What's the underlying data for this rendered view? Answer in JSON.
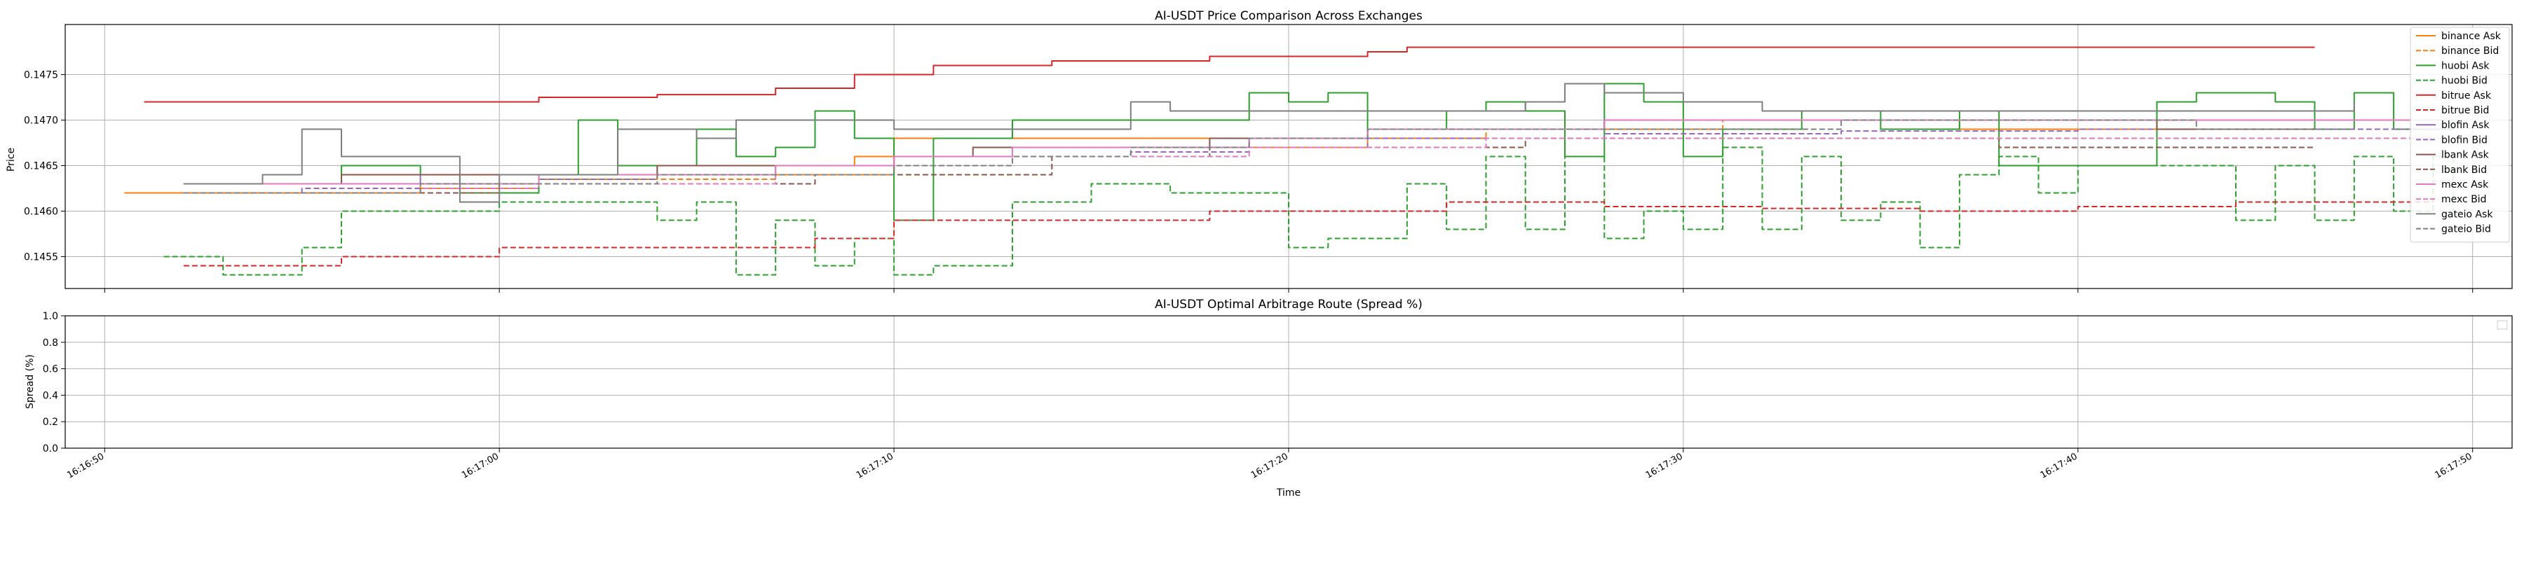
{
  "chart_data": [
    {
      "type": "line",
      "title": "AI-USDT Price Comparison Across Exchanges",
      "xlabel": "",
      "ylabel": "Price",
      "xlim": [
        "16:16:49",
        "16:17:51"
      ],
      "ylim": [
        0.14515,
        0.14805
      ],
      "yticks": [
        "0.1455",
        "0.1460",
        "0.1465",
        "0.1470",
        "0.1475"
      ],
      "ytick_values": [
        0.1455,
        0.146,
        0.1465,
        0.147,
        0.1475
      ],
      "grid": true,
      "legend_position": "right",
      "series": [
        {
          "name": "binance Ask",
          "color": "#ff7f0e",
          "style": "solid",
          "x": [
            "16:16:50.5",
            "16:16:52",
            "16:16:55",
            "16:16:58",
            "16:17:01",
            "16:17:04",
            "16:17:07",
            "16:17:09",
            "16:17:10",
            "16:17:13",
            "16:17:16",
            "16:17:19",
            "16:17:22",
            "16:17:25",
            "16:17:28",
            "16:17:31",
            "16:17:34",
            "16:17:37",
            "16:17:40",
            "16:17:43",
            "16:17:47"
          ],
          "y": [
            0.1462,
            0.1462,
            0.1462,
            0.14625,
            0.14635,
            0.1464,
            0.1465,
            0.1466,
            0.1468,
            0.1468,
            0.1468,
            0.1468,
            0.1469,
            0.1469,
            0.147,
            0.147,
            0.147,
            0.1469,
            0.1469,
            0.1469,
            0.1469
          ]
        },
        {
          "name": "binance Bid",
          "color": "#ff7f0e",
          "style": "dashed",
          "x": [
            "16:16:52.5",
            "16:16:55",
            "16:16:58",
            "16:17:01",
            "16:17:04",
            "16:17:07",
            "16:17:10",
            "16:17:13",
            "16:17:16",
            "16:17:19",
            "16:17:22",
            "16:17:25",
            "16:17:28",
            "16:17:31",
            "16:17:34",
            "16:17:37",
            "16:17:40",
            "16:17:43",
            "16:17:47"
          ],
          "y": [
            0.1462,
            0.1462,
            0.1463,
            0.14635,
            0.14635,
            0.1464,
            0.1466,
            0.1467,
            0.1467,
            0.1467,
            0.1468,
            0.1469,
            0.1469,
            0.147,
            0.147,
            0.1469,
            0.1469,
            0.1469,
            0.1469
          ]
        },
        {
          "name": "huobi Ask",
          "color": "#2ca02c",
          "style": "solid",
          "x": [
            "16:16:52",
            "16:16:54",
            "16:16:56",
            "16:16:58",
            "16:16:59",
            "16:17:01",
            "16:17:02",
            "16:17:03",
            "16:17:05",
            "16:17:06",
            "16:17:07",
            "16:17:08",
            "16:17:09",
            "16:17:10",
            "16:17:11",
            "16:17:13",
            "16:17:15",
            "16:17:17",
            "16:17:18",
            "16:17:19",
            "16:17:20",
            "16:17:21",
            "16:17:22",
            "16:17:24",
            "16:17:25",
            "16:17:26",
            "16:17:27",
            "16:17:28",
            "16:17:29",
            "16:17:30",
            "16:17:31",
            "16:17:33",
            "16:17:35",
            "16:17:37",
            "16:17:38",
            "16:17:40",
            "16:17:42",
            "16:17:43",
            "16:17:45",
            "16:17:46",
            "16:17:47",
            "16:17:48",
            "16:17:49.5"
          ],
          "y": [
            0.1463,
            0.1463,
            0.1465,
            0.1464,
            0.1462,
            0.1464,
            0.147,
            0.1465,
            0.1469,
            0.1466,
            0.1467,
            0.1471,
            0.1468,
            0.1459,
            0.1468,
            0.147,
            0.147,
            0.147,
            0.147,
            0.1473,
            0.1472,
            0.1473,
            0.1469,
            0.1471,
            0.1472,
            0.1471,
            0.1466,
            0.1474,
            0.1472,
            0.1466,
            0.1469,
            0.1471,
            0.1469,
            0.1471,
            0.1465,
            0.1465,
            0.1472,
            0.1473,
            0.1472,
            0.1469,
            0.1473,
            0.1469,
            0.147
          ]
        },
        {
          "name": "huobi Bid",
          "color": "#2ca02c",
          "style": "dashed",
          "x": [
            "16:16:51.5",
            "16:16:53",
            "16:16:55",
            "16:16:56",
            "16:16:58",
            "16:17:00",
            "16:17:02",
            "16:17:04",
            "16:17:05",
            "16:17:06",
            "16:17:07",
            "16:17:08",
            "16:17:09",
            "16:17:10",
            "16:17:11",
            "16:17:12",
            "16:17:13",
            "16:17:15",
            "16:17:17",
            "16:17:19",
            "16:17:20",
            "16:17:21",
            "16:17:22",
            "16:17:23",
            "16:17:24",
            "16:17:25",
            "16:17:26",
            "16:17:27",
            "16:17:28",
            "16:17:29",
            "16:17:30",
            "16:17:31",
            "16:17:32",
            "16:17:33",
            "16:17:34",
            "16:17:35",
            "16:17:36",
            "16:17:37",
            "16:17:38",
            "16:17:39",
            "16:17:40",
            "16:17:41",
            "16:17:42",
            "16:17:43",
            "16:17:44",
            "16:17:45",
            "16:17:46",
            "16:17:47",
            "16:17:48",
            "16:17:49",
            "16:17:49.5"
          ],
          "y": [
            0.1455,
            0.1453,
            0.1456,
            0.146,
            0.146,
            0.1461,
            0.1461,
            0.1459,
            0.1461,
            0.1453,
            0.1459,
            0.1454,
            0.1457,
            0.1453,
            0.1454,
            0.1454,
            0.1461,
            0.1463,
            0.1462,
            0.1462,
            0.1456,
            0.1457,
            0.1457,
            0.1463,
            0.1458,
            0.1466,
            0.1458,
            0.1466,
            0.1457,
            0.146,
            0.1458,
            0.1467,
            0.1458,
            0.1466,
            0.1459,
            0.1461,
            0.1456,
            0.1464,
            0.1466,
            0.1462,
            0.1465,
            0.1465,
            0.1465,
            0.1465,
            0.1459,
            0.1465,
            0.1459,
            0.1466,
            0.146,
            0.1466,
            0.146
          ]
        },
        {
          "name": "bitrue Ask",
          "color": "#d62728",
          "style": "solid",
          "x": [
            "16:16:51",
            "16:16:55",
            "16:16:58",
            "16:17:01",
            "16:17:04",
            "16:17:07",
            "16:17:09",
            "16:17:11",
            "16:17:14",
            "16:17:18",
            "16:17:21",
            "16:17:22",
            "16:17:23",
            "16:17:26",
            "16:17:30",
            "16:17:35",
            "16:17:40",
            "16:17:46"
          ],
          "y": [
            0.1472,
            0.1472,
            0.1472,
            0.14725,
            0.14728,
            0.14735,
            0.1475,
            0.1476,
            0.14765,
            0.1477,
            0.1477,
            0.14775,
            0.1478,
            0.1478,
            0.1478,
            0.1478,
            0.1478,
            0.1478
          ]
        },
        {
          "name": "bitrue Bid",
          "color": "#d62728",
          "style": "dashed",
          "x": [
            "16:16:52",
            "16:16:56",
            "16:17:00",
            "16:17:04",
            "16:17:08",
            "16:17:10",
            "16:17:14",
            "16:17:18",
            "16:17:22",
            "16:17:24",
            "16:17:28",
            "16:17:32",
            "16:17:36",
            "16:17:40",
            "16:17:44",
            "16:17:49"
          ],
          "y": [
            0.1454,
            0.1455,
            0.1456,
            0.1456,
            0.1457,
            0.1459,
            0.1459,
            0.146,
            0.146,
            0.1461,
            0.14605,
            0.14603,
            0.146,
            0.14605,
            0.1461,
            0.1461
          ]
        },
        {
          "name": "blofin Ask",
          "color": "#9467bd",
          "style": "solid",
          "x": [
            "16:16:52",
            "16:16:55",
            "16:16:58",
            "16:17:01",
            "16:17:04",
            "16:17:07",
            "16:17:10",
            "16:17:13",
            "16:17:16",
            "16:17:19",
            "16:17:22",
            "16:17:25",
            "16:17:28",
            "16:17:31",
            "16:17:34",
            "16:17:37",
            "16:17:40",
            "16:17:43",
            "16:17:46",
            "16:17:49.5"
          ],
          "y": [
            0.1463,
            0.1463,
            0.1464,
            0.1464,
            0.1465,
            0.1465,
            0.1466,
            0.1467,
            0.1467,
            0.1468,
            0.1469,
            0.1469,
            0.147,
            0.147,
            0.147,
            0.147,
            0.147,
            0.147,
            0.147,
            0.147
          ]
        },
        {
          "name": "blofin Bid",
          "color": "#9467bd",
          "style": "dashed",
          "x": [
            "16:16:52",
            "16:16:55",
            "16:16:58",
            "16:17:01",
            "16:17:04",
            "16:17:07",
            "16:17:10",
            "16:17:13",
            "16:17:16",
            "16:17:19",
            "16:17:22",
            "16:17:25",
            "16:17:28",
            "16:17:31",
            "16:17:34",
            "16:17:37",
            "16:17:40",
            "16:17:43",
            "16:17:46",
            "16:17:49.5"
          ],
          "y": [
            0.1462,
            0.14625,
            0.1463,
            0.14635,
            0.1464,
            0.1464,
            0.1466,
            0.1466,
            0.14665,
            0.1467,
            0.1468,
            0.1468,
            0.14685,
            0.14685,
            0.14688,
            0.14688,
            0.1469,
            0.1469,
            0.1469,
            0.1469
          ]
        },
        {
          "name": "lbank Ask",
          "color": "#8c564b",
          "style": "solid",
          "x": [
            "16:16:52",
            "16:16:54",
            "16:16:56",
            "16:16:58",
            "16:17:00",
            "16:17:02",
            "16:17:04",
            "16:17:06",
            "16:17:08",
            "16:17:10",
            "16:17:12",
            "16:17:14",
            "16:17:16",
            "16:17:18",
            "16:17:20",
            "16:17:22",
            "16:17:24",
            "16:17:26",
            "16:17:28",
            "16:17:30",
            "16:17:32",
            "16:17:34",
            "16:17:36",
            "16:17:38",
            "16:17:40",
            "16:17:42",
            "16:17:44",
            "16:17:46"
          ],
          "y": [
            0.1463,
            0.1463,
            0.1464,
            0.1464,
            0.1464,
            0.1464,
            0.1465,
            0.1465,
            0.1465,
            0.1466,
            0.1467,
            0.1467,
            0.1467,
            0.1468,
            0.1468,
            0.1469,
            0.1469,
            0.1469,
            0.147,
            0.147,
            0.147,
            0.147,
            0.147,
            0.147,
            0.147,
            0.1469,
            0.1469,
            0.1469
          ]
        },
        {
          "name": "lbank Bid",
          "color": "#8c564b",
          "style": "dashed",
          "x": [
            "16:16:52",
            "16:16:56",
            "16:17:00",
            "16:17:04",
            "16:17:08",
            "16:17:10",
            "16:17:14",
            "16:17:18",
            "16:17:22",
            "16:17:26",
            "16:17:30",
            "16:17:34",
            "16:17:38",
            "16:17:42",
            "16:17:46"
          ],
          "y": [
            0.1462,
            0.1462,
            0.1463,
            0.1463,
            0.1464,
            0.1464,
            0.1466,
            0.1467,
            0.1467,
            0.1468,
            0.1468,
            0.1468,
            0.1467,
            0.1467,
            0.1467
          ]
        },
        {
          "name": "mexc Ask",
          "color": "#e377c2",
          "style": "solid",
          "x": [
            "16:16:52",
            "16:16:55",
            "16:16:58",
            "16:17:01",
            "16:17:04",
            "16:17:07",
            "16:17:10",
            "16:17:13",
            "16:17:16",
            "16:17:19",
            "16:17:22",
            "16:17:25",
            "16:17:28",
            "16:17:31",
            "16:17:34",
            "16:17:37",
            "16:17:40",
            "16:17:43",
            "16:17:46",
            "16:17:49.5"
          ],
          "y": [
            0.1463,
            0.1463,
            0.1463,
            0.1464,
            0.1464,
            0.1465,
            0.1466,
            0.1467,
            0.1467,
            0.1468,
            0.1469,
            0.1469,
            0.147,
            0.147,
            0.147,
            0.147,
            0.147,
            0.147,
            0.147,
            0.147
          ]
        },
        {
          "name": "mexc Bid",
          "color": "#e377c2",
          "style": "dashed",
          "x": [
            "16:16:52",
            "16:16:55",
            "16:16:58",
            "16:17:01",
            "16:17:04",
            "16:17:07",
            "16:17:10",
            "16:17:13",
            "16:17:16",
            "16:17:19",
            "16:17:22",
            "16:17:25",
            "16:17:28",
            "16:17:31",
            "16:17:34",
            "16:17:37",
            "16:17:40",
            "16:17:43",
            "16:17:46",
            "16:17:49"
          ],
          "y": [
            0.1462,
            0.1462,
            0.14625,
            0.1463,
            0.1463,
            0.1464,
            0.1465,
            0.1466,
            0.1466,
            0.1467,
            0.1467,
            0.1468,
            0.1468,
            0.1468,
            0.1468,
            0.1468,
            0.1468,
            0.1468,
            0.1468,
            0.1468
          ]
        },
        {
          "name": "gateio Ask",
          "color": "#7f7f7f",
          "style": "solid",
          "x": [
            "16:16:52",
            "16:16:54",
            "16:16:55",
            "16:16:56",
            "16:16:58",
            "16:16:59",
            "16:17:00",
            "16:17:02",
            "16:17:03",
            "16:17:05",
            "16:17:06",
            "16:17:08",
            "16:17:10",
            "16:17:12",
            "16:17:14",
            "16:17:16",
            "16:17:17",
            "16:17:18",
            "16:17:20",
            "16:17:22",
            "16:17:24",
            "16:17:26",
            "16:17:27",
            "16:17:28",
            "16:17:30",
            "16:17:32",
            "16:17:34",
            "16:17:36",
            "16:17:38",
            "16:17:40",
            "16:17:42",
            "16:17:44",
            "16:17:46",
            "16:17:47"
          ],
          "y": [
            0.1463,
            0.1464,
            0.1469,
            0.1466,
            0.1466,
            0.1461,
            0.1464,
            0.1464,
            0.1469,
            0.1468,
            0.147,
            0.147,
            0.1469,
            0.1469,
            0.1469,
            0.1472,
            0.1471,
            0.1471,
            0.1471,
            0.1471,
            0.1471,
            0.1472,
            0.1474,
            0.1473,
            0.1472,
            0.1471,
            0.1471,
            0.1471,
            0.1471,
            0.1471,
            0.1471,
            0.1471,
            0.1471,
            0.1472
          ]
        },
        {
          "name": "gateio Bid",
          "color": "#7f7f7f",
          "style": "dashed",
          "x": [
            "16:16:52",
            "16:16:55",
            "16:16:58",
            "16:17:01",
            "16:17:04",
            "16:17:07",
            "16:17:10",
            "16:17:13",
            "16:17:16",
            "16:17:19",
            "16:17:22",
            "16:17:25",
            "16:17:28",
            "16:17:31",
            "16:17:34",
            "16:17:37",
            "16:17:40",
            "16:17:43",
            "16:17:46"
          ],
          "y": [
            0.1462,
            0.1462,
            0.1463,
            0.1463,
            0.1464,
            0.1464,
            0.1465,
            0.1466,
            0.1467,
            0.1468,
            0.1469,
            0.1469,
            0.1469,
            0.1469,
            0.147,
            0.147,
            0.147,
            0.1469,
            0.1469
          ]
        }
      ]
    },
    {
      "type": "line",
      "title": "AI-USDT Optimal Arbitrage Route (Spread %)",
      "xlabel": "Time",
      "ylabel": "Spread (%)",
      "xlim": [
        "16:16:49",
        "16:17:51"
      ],
      "ylim": [
        0.0,
        1.0
      ],
      "yticks": [
        "0.0",
        "0.2",
        "0.4",
        "0.6",
        "0.8",
        "1.0"
      ],
      "ytick_values": [
        0.0,
        0.2,
        0.4,
        0.6,
        0.8,
        1.0
      ],
      "xticks": [
        "16:16:50",
        "16:17:00",
        "16:17:10",
        "16:17:20",
        "16:17:30",
        "16:17:40",
        "16:17:50"
      ],
      "grid": true,
      "series": []
    }
  ]
}
